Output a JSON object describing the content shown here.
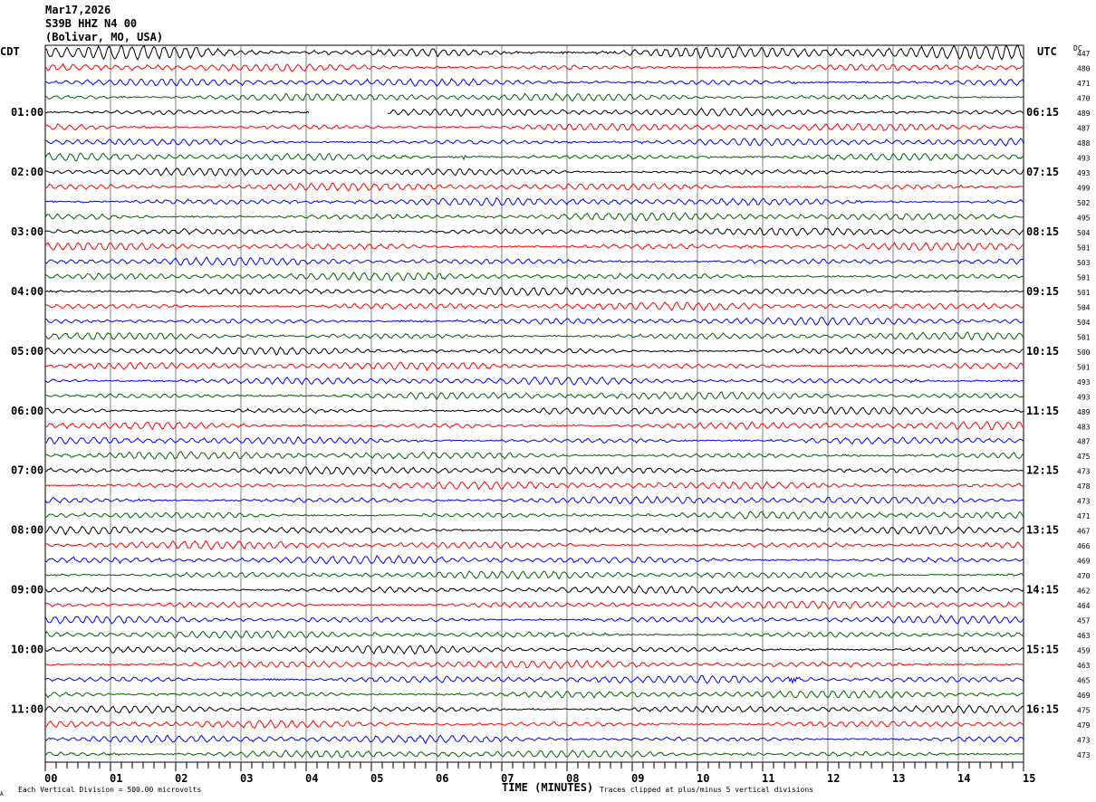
{
  "header": {
    "date": "Mar17,2026",
    "station": "S39B HHZ N4 00",
    "location": "(Bolivar, MO, USA)"
  },
  "left_tz": "CDT",
  "right_tz": "UTC",
  "dc_label": "DC",
  "footer": {
    "scale_note": "Each Vertical Division =  500.00 microvolts",
    "xlabel": "TIME (MINUTES)",
    "clip_note": "Traces clipped at plus/minus 5 vertical divisions",
    "corner_mark": "A"
  },
  "chart_data": {
    "type": "line",
    "title": "S39B HHZ N4 00 helicorder",
    "xlabel": "TIME (MINUTES)",
    "xlim": [
      0,
      15
    ],
    "x_ticks": [
      "00",
      "01",
      "02",
      "03",
      "04",
      "05",
      "06",
      "07",
      "08",
      "09",
      "10",
      "11",
      "12",
      "13",
      "14",
      "15"
    ],
    "trace_colors": [
      "#000000",
      "#ff0000",
      "#0000ff",
      "#006400"
    ],
    "left_hour_labels": [
      "01:00",
      "02:00",
      "03:00",
      "04:00",
      "05:00",
      "06:00",
      "07:00",
      "08:00",
      "09:00",
      "10:00",
      "11:00"
    ],
    "right_hour_labels": [
      "06:15",
      "07:15",
      "08:15",
      "09:15",
      "10:15",
      "11:15",
      "12:15",
      "13:15",
      "14:15",
      "15:15",
      "16:15"
    ],
    "dc_offsets": [
      447,
      480,
      471,
      470,
      489,
      487,
      488,
      493,
      493,
      499,
      502,
      495,
      504,
      501,
      503,
      501,
      501,
      504,
      504,
      501,
      500,
      501,
      493,
      493,
      489,
      483,
      487,
      475,
      473,
      478,
      473,
      471,
      467,
      466,
      469,
      470,
      462,
      464,
      457,
      463,
      459,
      463,
      465,
      469,
      475,
      479,
      473,
      473
    ],
    "events": [
      {
        "trace": 7,
        "minute": 6.4,
        "amplitude": "small"
      },
      {
        "trace": 42,
        "minute": 11.4,
        "amplitude": "moderate"
      }
    ],
    "gaps": [
      {
        "trace": 4,
        "from_minute": 4.05,
        "to_minute": 5.25
      }
    ]
  }
}
